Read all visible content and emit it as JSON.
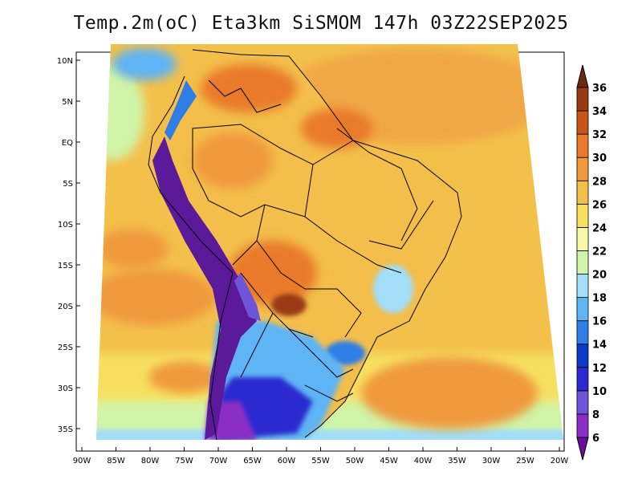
{
  "title": "Temp.2m(oC) Eta3km SiSMOM 147h 03Z22SEP2025",
  "y_ticks": [
    "10N",
    "5N",
    "EQ",
    "5S",
    "10S",
    "15S",
    "20S",
    "25S",
    "30S",
    "35S"
  ],
  "x_ticks": [
    "90W",
    "85W",
    "80W",
    "75W",
    "70W",
    "65W",
    "60W",
    "55W",
    "50W",
    "45W",
    "40W",
    "35W",
    "30W",
    "25W",
    "20W"
  ],
  "colorbar": {
    "labels": [
      "6",
      "8",
      "10",
      "12",
      "14",
      "16",
      "18",
      "20",
      "22",
      "24",
      "26",
      "28",
      "30",
      "32",
      "34",
      "36"
    ],
    "colors": [
      "#6a0f9c",
      "#8a2ec6",
      "#6e55d8",
      "#2c2ad0",
      "#0a3ac8",
      "#2f7ee6",
      "#5fb4f5",
      "#a2def8",
      "#d0f4a8",
      "#f7f7a8",
      "#f7e060",
      "#f3be4a",
      "#f09a3c",
      "#e97a2a",
      "#c8541a",
      "#9a3a12",
      "#6a2a10"
    ]
  },
  "colors": {
    "ocean_north": "#f3c04a",
    "ocean_south_warm": "#f19a3c",
    "cold_andes": "#5a1a9a",
    "south_cool": "#5fb4f5",
    "hot_core": "#c8541a",
    "border": "#000000"
  }
}
